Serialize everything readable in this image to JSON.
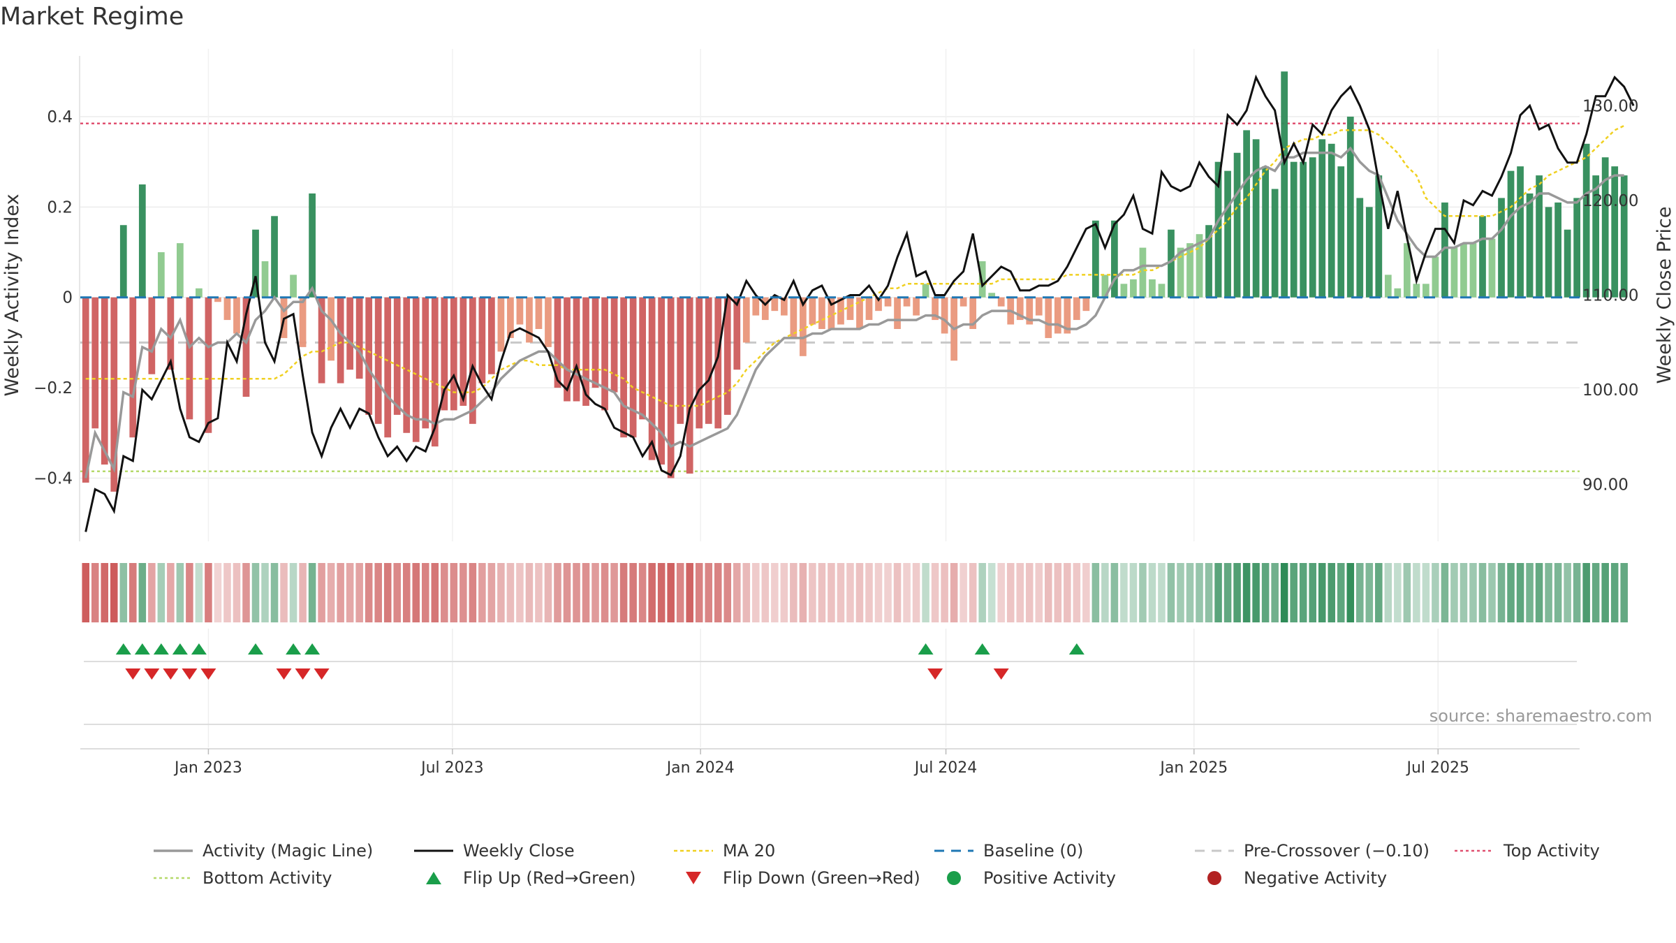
{
  "title": "Market Regime",
  "source": "source: sharemaestro.com",
  "chart_data": {
    "type": "bar",
    "start_date": "2022-10-02",
    "period": "weekly",
    "left_axis": {
      "label": "Weekly Activity Index",
      "ylim": [
        -0.54,
        0.55
      ],
      "ticks": [
        -0.4,
        -0.2,
        0,
        0.2,
        0.4
      ],
      "tick_labels": [
        "−0.4",
        "−0.2",
        "0",
        "0.2",
        "0.4"
      ]
    },
    "right_axis": {
      "label": "Weekly Close Price",
      "ylim": [
        84,
        136
      ],
      "ticks": [
        90,
        100,
        110,
        120,
        130
      ],
      "tick_labels": [
        "90.00",
        "100.00",
        "110.00",
        "120.00",
        "130.00"
      ]
    },
    "x_axis": {
      "type": "date",
      "xlim": [
        "2022-09-28",
        "2025-10-14"
      ],
      "ticks": [
        "2023-01-01",
        "2023-07-01",
        "2024-01-01",
        "2024-07-01",
        "2025-01-01",
        "2025-07-01"
      ],
      "tick_labels": [
        "Jan 2023",
        "Jul 2023",
        "Jan 2024",
        "Jul 2024",
        "Jan 2025",
        "Jul 2025"
      ]
    },
    "reference_lines": {
      "baseline": 0,
      "pre_crossover": -0.1,
      "top_activity": 0.385,
      "bottom_activity": -0.385
    },
    "activity_values": [
      -0.41,
      -0.29,
      -0.37,
      -0.43,
      0.16,
      -0.31,
      0.25,
      -0.17,
      0.1,
      -0.16,
      0.12,
      -0.27,
      0.02,
      -0.3,
      -0.01,
      -0.05,
      -0.08,
      -0.22,
      0.15,
      0.08,
      0.18,
      -0.09,
      0.05,
      -0.11,
      0.23,
      -0.19,
      -0.14,
      -0.19,
      -0.16,
      -0.18,
      -0.26,
      -0.28,
      -0.31,
      -0.26,
      -0.3,
      -0.32,
      -0.29,
      -0.33,
      -0.25,
      -0.25,
      -0.24,
      -0.28,
      -0.19,
      -0.17,
      -0.12,
      -0.09,
      -0.06,
      -0.1,
      -0.07,
      -0.11,
      -0.2,
      -0.23,
      -0.23,
      -0.24,
      -0.2,
      -0.25,
      -0.21,
      -0.31,
      -0.31,
      -0.27,
      -0.36,
      -0.37,
      -0.4,
      -0.28,
      -0.39,
      -0.29,
      -0.28,
      -0.29,
      -0.26,
      -0.16,
      -0.1,
      -0.04,
      -0.05,
      -0.03,
      -0.04,
      -0.09,
      -0.13,
      -0.06,
      -0.07,
      -0.07,
      -0.06,
      -0.05,
      -0.07,
      -0.05,
      -0.03,
      -0.02,
      -0.07,
      -0.02,
      -0.04,
      0.03,
      -0.05,
      -0.08,
      -0.14,
      -0.02,
      -0.07,
      0.08,
      0.01,
      -0.02,
      -0.06,
      -0.05,
      -0.06,
      -0.04,
      -0.09,
      -0.08,
      -0.08,
      -0.05,
      -0.03,
      0.17,
      0.05,
      0.17,
      0.03,
      0.04,
      0.11,
      0.04,
      0.03,
      0.15,
      0.11,
      0.12,
      0.14,
      0.16,
      0.3,
      0.28,
      0.32,
      0.37,
      0.35,
      0.29,
      0.24,
      0.5,
      0.3,
      0.3,
      0.31,
      0.35,
      0.34,
      0.29,
      0.4,
      0.22,
      0.2,
      0.27,
      0.05,
      0.02,
      0.12,
      0.03,
      0.03,
      0.09,
      0.21,
      0.11,
      0.12,
      0.12,
      0.18,
      0.13,
      0.22,
      0.28,
      0.29,
      0.23,
      0.27,
      0.2,
      0.21,
      0.15,
      0.22,
      0.34,
      0.27,
      0.31,
      0.29,
      0.27
    ],
    "activity_ma": [
      -0.4,
      -0.3,
      -0.34,
      -0.38,
      -0.21,
      -0.22,
      -0.11,
      -0.12,
      -0.07,
      -0.09,
      -0.05,
      -0.11,
      -0.09,
      -0.11,
      -0.1,
      -0.1,
      -0.08,
      -0.1,
      -0.05,
      -0.03,
      0.0,
      -0.03,
      -0.01,
      -0.01,
      0.02,
      -0.03,
      -0.05,
      -0.08,
      -0.1,
      -0.12,
      -0.16,
      -0.19,
      -0.22,
      -0.24,
      -0.26,
      -0.27,
      -0.27,
      -0.28,
      -0.27,
      -0.27,
      -0.26,
      -0.25,
      -0.23,
      -0.21,
      -0.18,
      -0.16,
      -0.14,
      -0.13,
      -0.12,
      -0.12,
      -0.14,
      -0.16,
      -0.17,
      -0.18,
      -0.19,
      -0.2,
      -0.21,
      -0.24,
      -0.25,
      -0.26,
      -0.28,
      -0.3,
      -0.33,
      -0.32,
      -0.33,
      -0.32,
      -0.31,
      -0.3,
      -0.29,
      -0.26,
      -0.21,
      -0.16,
      -0.13,
      -0.11,
      -0.09,
      -0.09,
      -0.09,
      -0.08,
      -0.08,
      -0.07,
      -0.07,
      -0.07,
      -0.07,
      -0.06,
      -0.06,
      -0.05,
      -0.05,
      -0.05,
      -0.05,
      -0.04,
      -0.04,
      -0.05,
      -0.07,
      -0.06,
      -0.06,
      -0.04,
      -0.03,
      -0.03,
      -0.03,
      -0.04,
      -0.05,
      -0.05,
      -0.06,
      -0.06,
      -0.07,
      -0.07,
      -0.06,
      -0.04,
      0.0,
      0.04,
      0.06,
      0.06,
      0.07,
      0.07,
      0.07,
      0.08,
      0.1,
      0.11,
      0.12,
      0.13,
      0.17,
      0.2,
      0.23,
      0.26,
      0.28,
      0.29,
      0.28,
      0.31,
      0.31,
      0.32,
      0.32,
      0.32,
      0.32,
      0.31,
      0.33,
      0.3,
      0.28,
      0.27,
      0.22,
      0.17,
      0.14,
      0.11,
      0.09,
      0.09,
      0.11,
      0.11,
      0.12,
      0.12,
      0.13,
      0.13,
      0.15,
      0.18,
      0.2,
      0.21,
      0.23,
      0.23,
      0.22,
      0.21,
      0.21,
      0.23,
      0.24,
      0.26,
      0.27,
      0.27
    ],
    "ma20": [
      -0.18,
      -0.18,
      -0.18,
      -0.18,
      -0.18,
      -0.18,
      -0.18,
      -0.18,
      -0.18,
      -0.18,
      -0.18,
      -0.18,
      -0.18,
      -0.18,
      -0.18,
      -0.18,
      -0.18,
      -0.18,
      -0.18,
      -0.18,
      -0.18,
      -0.17,
      -0.15,
      -0.13,
      -0.12,
      -0.12,
      -0.11,
      -0.1,
      -0.1,
      -0.11,
      -0.12,
      -0.13,
      -0.14,
      -0.15,
      -0.16,
      -0.17,
      -0.18,
      -0.19,
      -0.2,
      -0.21,
      -0.21,
      -0.21,
      -0.2,
      -0.18,
      -0.16,
      -0.15,
      -0.14,
      -0.14,
      -0.15,
      -0.15,
      -0.15,
      -0.16,
      -0.16,
      -0.16,
      -0.16,
      -0.16,
      -0.17,
      -0.18,
      -0.2,
      -0.21,
      -0.22,
      -0.23,
      -0.24,
      -0.24,
      -0.24,
      -0.24,
      -0.23,
      -0.22,
      -0.21,
      -0.19,
      -0.16,
      -0.14,
      -0.12,
      -0.1,
      -0.09,
      -0.08,
      -0.07,
      -0.06,
      -0.05,
      -0.04,
      -0.03,
      -0.02,
      -0.01,
      0.0,
      0.01,
      0.02,
      0.02,
      0.03,
      0.03,
      0.03,
      0.03,
      0.03,
      0.03,
      0.03,
      0.03,
      0.03,
      0.03,
      0.04,
      0.04,
      0.04,
      0.04,
      0.04,
      0.04,
      0.04,
      0.05,
      0.05,
      0.05,
      0.05,
      0.05,
      0.05,
      0.05,
      0.05,
      0.06,
      0.06,
      0.07,
      0.08,
      0.09,
      0.1,
      0.11,
      0.13,
      0.15,
      0.17,
      0.2,
      0.22,
      0.25,
      0.28,
      0.3,
      0.33,
      0.34,
      0.35,
      0.35,
      0.36,
      0.36,
      0.37,
      0.37,
      0.37,
      0.37,
      0.36,
      0.34,
      0.32,
      0.29,
      0.27,
      0.22,
      0.2,
      0.18,
      0.18,
      0.18,
      0.18,
      0.18,
      0.18,
      0.19,
      0.2,
      0.22,
      0.24,
      0.25,
      0.27,
      0.28,
      0.29,
      0.3,
      0.31,
      0.33,
      0.35,
      0.37,
      0.38
    ],
    "weekly_close": [
      85.0,
      89.5,
      89.0,
      87.2,
      93.0,
      92.5,
      100.0,
      99.0,
      101.0,
      103.0,
      98.0,
      95.0,
      94.5,
      96.5,
      97.0,
      105.0,
      103.0,
      108.0,
      112.0,
      105.0,
      103.0,
      107.5,
      108.0,
      101.5,
      95.5,
      93.0,
      96.0,
      98.0,
      96.0,
      98.0,
      97.5,
      95.0,
      93.0,
      94.0,
      92.5,
      94.0,
      93.5,
      96.0,
      100.0,
      101.5,
      99.0,
      102.5,
      100.5,
      99.0,
      103.0,
      106.0,
      106.5,
      106.0,
      105.5,
      104.0,
      101.0,
      100.0,
      102.5,
      99.5,
      98.5,
      98.0,
      96.0,
      95.5,
      95.0,
      93.0,
      94.5,
      91.5,
      91.0,
      93.0,
      98.0,
      100.0,
      101.0,
      103.5,
      110.0,
      109.0,
      111.5,
      110.0,
      109.0,
      110.0,
      109.5,
      111.5,
      109.0,
      110.5,
      111.0,
      109.0,
      109.5,
      110.0,
      110.0,
      111.0,
      109.5,
      111.0,
      114.0,
      116.5,
      112.0,
      112.5,
      110.0,
      110.0,
      111.5,
      112.5,
      116.5,
      111.0,
      112.0,
      113.0,
      112.5,
      110.5,
      110.5,
      111.0,
      111.0,
      111.5,
      113.0,
      115.0,
      117.0,
      117.5,
      115.0,
      117.5,
      118.5,
      120.5,
      117.0,
      116.5,
      123.0,
      121.5,
      121.0,
      121.5,
      124.0,
      122.5,
      121.5,
      129.0,
      128.0,
      129.5,
      133.0,
      131.0,
      129.5,
      124.0,
      126.0,
      124.0,
      128.0,
      127.0,
      129.5,
      131.0,
      132.0,
      130.0,
      127.5,
      122.0,
      117.0,
      121.0,
      116.0,
      111.5,
      114.5,
      117.0,
      117.0,
      115.5,
      120.0,
      119.5,
      121.0,
      120.5,
      122.5,
      125.0,
      129.0,
      130.0,
      127.5,
      128.0,
      125.5,
      124.0,
      124.0,
      127.0,
      131.0,
      131.0,
      133.0,
      132.0,
      130.0
    ],
    "flip_up_weeks": [
      4,
      6,
      8,
      10,
      12,
      18,
      22,
      24,
      89,
      95,
      105
    ],
    "flip_down_weeks": [
      5,
      7,
      9,
      11,
      13,
      21,
      23,
      25,
      90,
      97
    ],
    "legend": [
      "Activity (Magic Line)",
      "Weekly Close",
      "MA 20",
      "Baseline (0)",
      "Pre-Crossover (−0.10)",
      "Top Activity",
      "Bottom Activity",
      "Flip Up (Red→Green)",
      "Flip Down (Green→Red)",
      "Positive Activity",
      "Negative Activity"
    ],
    "legend_position": "bottom",
    "grid": true
  },
  "colors": {
    "pos_strong": "#2e8b57",
    "pos_light": "#8bc88b",
    "neg_strong": "#cd5c5c",
    "neg_light": "#e9967a",
    "magic_line": "#999999",
    "close_line": "#111111",
    "ma20_line": "#f0d020",
    "baseline": "#1f77b4",
    "pre_crossover": "#c8c8c8",
    "top_activity": "#e05070",
    "bottom_activity": "#b5d96a",
    "flip_up": "#1a9e4a",
    "flip_down": "#d62728",
    "positive_dot": "#1a9e4a",
    "negative_dot": "#b22222"
  }
}
